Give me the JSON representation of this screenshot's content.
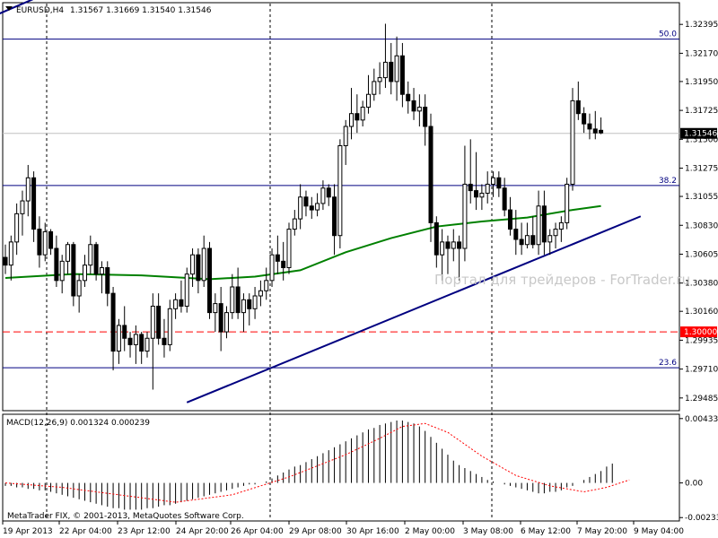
{
  "header": {
    "symbol": "EURUSD,H4",
    "ohlc": "1.31567 1.31669 1.31540 1.31546"
  },
  "watermark": "Портал для трейдеров - ForTrader.ru",
  "copyright": "MetaTrader FIX, © 2001-2013, MetaQuotes Software Corp.",
  "colors": {
    "candle": "#000000",
    "ma": "#008000",
    "trendline": "#000080",
    "fib": "#000080",
    "level": "#ff0000",
    "macd_signal": "#ff0000"
  },
  "price_axis": {
    "ticks": [
      "1.32395",
      "1.32170",
      "1.31950",
      "1.31725",
      "1.31500",
      "1.31275",
      "1.31055",
      "1.30830",
      "1.30605",
      "1.30380",
      "1.30160",
      "1.29935",
      "1.29710",
      "1.29485"
    ],
    "current_price": "1.31546",
    "level_price": "1.30000"
  },
  "fib_levels": [
    {
      "label": "50.0",
      "price": 1.3228
    },
    {
      "label": "38.2",
      "price": 1.3114
    },
    {
      "label": "23.6",
      "price": 1.2972
    }
  ],
  "macd": {
    "title": "MACD(12,26,9) 0.001324 0.000239",
    "ticks": [
      "0.004331",
      "0.00",
      "-0.002333"
    ]
  },
  "time_axis": [
    "19 Apr 2013",
    "22 Apr 04:00",
    "23 Apr 12:00",
    "24 Apr 20:00",
    "26 Apr 04:00",
    "29 Apr 08:00",
    "30 Apr 16:00",
    "2 May 00:00",
    "3 May 08:00",
    "6 May 12:00",
    "7 May 20:00",
    "9 May 04:00"
  ],
  "chart_data": {
    "type": "candlestick",
    "symbol": "EURUSD",
    "timeframe": "H4",
    "ylim": [
      1.294,
      1.3255
    ],
    "candles": [
      [
        1.3058,
        1.3068,
        1.3045,
        1.3052
      ],
      [
        1.3052,
        1.3075,
        1.304,
        1.307
      ],
      [
        1.307,
        1.31,
        1.306,
        1.3092
      ],
      [
        1.3092,
        1.311,
        1.3075,
        1.3102
      ],
      [
        1.3102,
        1.313,
        1.309,
        1.312
      ],
      [
        1.312,
        1.3125,
        1.307,
        1.308
      ],
      [
        1.308,
        1.309,
        1.305,
        1.306
      ],
      [
        1.306,
        1.3085,
        1.3055,
        1.3078
      ],
      [
        1.3078,
        1.308,
        1.306,
        1.3065
      ],
      [
        1.3065,
        1.3075,
        1.3035,
        1.304
      ],
      [
        1.304,
        1.306,
        1.303,
        1.3055
      ],
      [
        1.3055,
        1.307,
        1.3045,
        1.3068
      ],
      [
        1.3068,
        1.307,
        1.302,
        1.3028
      ],
      [
        1.3028,
        1.3045,
        1.3015,
        1.304
      ],
      [
        1.304,
        1.306,
        1.3035,
        1.3052
      ],
      [
        1.3052,
        1.3075,
        1.3045,
        1.3068
      ],
      [
        1.3068,
        1.307,
        1.304,
        1.3045
      ],
      [
        1.3045,
        1.3055,
        1.303,
        1.305
      ],
      [
        1.305,
        1.3055,
        1.302,
        1.303
      ],
      [
        1.303,
        1.3035,
        1.297,
        1.2985
      ],
      [
        1.2985,
        1.301,
        1.2975,
        1.3005
      ],
      [
        1.3005,
        1.302,
        1.2985,
        1.2995
      ],
      [
        1.2995,
        1.3,
        1.298,
        1.299
      ],
      [
        1.299,
        1.3005,
        1.2975,
        1.2998
      ],
      [
        1.2998,
        1.3,
        1.2975,
        1.2985
      ],
      [
        1.2985,
        1.3,
        1.298,
        1.2995
      ],
      [
        1.2995,
        1.303,
        1.2955,
        1.302
      ],
      [
        1.302,
        1.303,
        1.299,
        1.2995
      ],
      [
        1.2995,
        1.301,
        1.298,
        1.299
      ],
      [
        1.299,
        1.3025,
        1.2985,
        1.3018
      ],
      [
        1.3018,
        1.303,
        1.301,
        1.3025
      ],
      [
        1.3025,
        1.304,
        1.3015,
        1.302
      ],
      [
        1.302,
        1.305,
        1.3015,
        1.3045
      ],
      [
        1.3045,
        1.3065,
        1.3035,
        1.306
      ],
      [
        1.306,
        1.3065,
        1.303,
        1.304
      ],
      [
        1.304,
        1.3075,
        1.3035,
        1.3065
      ],
      [
        1.3065,
        1.307,
        1.301,
        1.3015
      ],
      [
        1.3015,
        1.303,
        1.3,
        1.3022
      ],
      [
        1.3022,
        1.3035,
        1.2985,
        1.3
      ],
      [
        1.3,
        1.302,
        1.2995,
        1.3015
      ],
      [
        1.3015,
        1.3045,
        1.301,
        1.3035
      ],
      [
        1.3035,
        1.305,
        1.301,
        1.3015
      ],
      [
        1.3015,
        1.303,
        1.3,
        1.3025
      ],
      [
        1.3025,
        1.303,
        1.3005,
        1.3018
      ],
      [
        1.3018,
        1.3035,
        1.301,
        1.3028
      ],
      [
        1.3028,
        1.304,
        1.302,
        1.3032
      ],
      [
        1.3032,
        1.305,
        1.3025,
        1.304
      ],
      [
        1.304,
        1.3065,
        1.3035,
        1.306
      ],
      [
        1.306,
        1.3075,
        1.3045,
        1.3055
      ],
      [
        1.3055,
        1.307,
        1.304,
        1.305
      ],
      [
        1.305,
        1.3085,
        1.3045,
        1.308
      ],
      [
        1.308,
        1.3095,
        1.3075,
        1.3088
      ],
      [
        1.3088,
        1.3115,
        1.308,
        1.3105
      ],
      [
        1.3105,
        1.311,
        1.309,
        1.3098
      ],
      [
        1.3098,
        1.3105,
        1.3088,
        1.3095
      ],
      [
        1.3095,
        1.3108,
        1.309,
        1.31
      ],
      [
        1.31,
        1.3118,
        1.3095,
        1.3112
      ],
      [
        1.3112,
        1.3115,
        1.3098,
        1.3105
      ],
      [
        1.3105,
        1.3115,
        1.306,
        1.3075
      ],
      [
        1.3075,
        1.315,
        1.3065,
        1.3145
      ],
      [
        1.3145,
        1.3165,
        1.313,
        1.316
      ],
      [
        1.316,
        1.319,
        1.315,
        1.317
      ],
      [
        1.317,
        1.3185,
        1.3155,
        1.3165
      ],
      [
        1.3165,
        1.318,
        1.316,
        1.3175
      ],
      [
        1.3175,
        1.32,
        1.317,
        1.3185
      ],
      [
        1.3185,
        1.3205,
        1.318,
        1.3195
      ],
      [
        1.3195,
        1.321,
        1.3185,
        1.3198
      ],
      [
        1.3198,
        1.324,
        1.319,
        1.321
      ],
      [
        1.321,
        1.3225,
        1.3185,
        1.3195
      ],
      [
        1.3195,
        1.323,
        1.318,
        1.3215
      ],
      [
        1.3215,
        1.3225,
        1.3175,
        1.3185
      ],
      [
        1.3185,
        1.3195,
        1.317,
        1.318
      ],
      [
        1.318,
        1.319,
        1.3165,
        1.3172
      ],
      [
        1.3172,
        1.3185,
        1.316,
        1.3175
      ],
      [
        1.3175,
        1.3185,
        1.3145,
        1.316
      ],
      [
        1.316,
        1.317,
        1.307,
        1.3085
      ],
      [
        1.3085,
        1.309,
        1.305,
        1.306
      ],
      [
        1.306,
        1.308,
        1.304,
        1.307
      ],
      [
        1.307,
        1.3075,
        1.3045,
        1.3065
      ],
      [
        1.3065,
        1.308,
        1.3055,
        1.307
      ],
      [
        1.307,
        1.3075,
        1.304,
        1.3065
      ],
      [
        1.3065,
        1.3145,
        1.3055,
        1.3115
      ],
      [
        1.3115,
        1.315,
        1.31,
        1.311
      ],
      [
        1.311,
        1.314,
        1.3095,
        1.3105
      ],
      [
        1.3105,
        1.3115,
        1.3095,
        1.3108
      ],
      [
        1.3108,
        1.3125,
        1.31,
        1.3115
      ],
      [
        1.3115,
        1.3125,
        1.3105,
        1.312
      ],
      [
        1.312,
        1.3125,
        1.3105,
        1.3112
      ],
      [
        1.3112,
        1.312,
        1.309,
        1.3095
      ],
      [
        1.3095,
        1.3105,
        1.3075,
        1.308
      ],
      [
        1.308,
        1.3095,
        1.306,
        1.3072
      ],
      [
        1.3072,
        1.3085,
        1.306,
        1.3068
      ],
      [
        1.3068,
        1.3085,
        1.3065,
        1.3075
      ],
      [
        1.3075,
        1.309,
        1.3065,
        1.3068
      ],
      [
        1.3068,
        1.311,
        1.306,
        1.3098
      ],
      [
        1.3098,
        1.311,
        1.306,
        1.307
      ],
      [
        1.307,
        1.308,
        1.306,
        1.3075
      ],
      [
        1.3075,
        1.3085,
        1.3065,
        1.308
      ],
      [
        1.308,
        1.309,
        1.307,
        1.3085
      ],
      [
        1.3085,
        1.312,
        1.308,
        1.3115
      ],
      [
        1.3115,
        1.319,
        1.311,
        1.318
      ],
      [
        1.318,
        1.3195,
        1.3165,
        1.317
      ],
      [
        1.317,
        1.3175,
        1.3155,
        1.3162
      ],
      [
        1.3162,
        1.317,
        1.315,
        1.3158
      ],
      [
        1.3158,
        1.3172,
        1.315,
        1.3155
      ],
      [
        1.3157,
        1.3167,
        1.3154,
        1.3155
      ]
    ],
    "moving_average": [
      [
        0,
        1.3042
      ],
      [
        12,
        1.3045
      ],
      [
        24,
        1.3044
      ],
      [
        36,
        1.3041
      ],
      [
        44,
        1.3043
      ],
      [
        52,
        1.3048
      ],
      [
        60,
        1.3062
      ],
      [
        68,
        1.3073
      ],
      [
        76,
        1.3082
      ],
      [
        84,
        1.3086
      ],
      [
        92,
        1.3089
      ],
      [
        100,
        1.3095
      ],
      [
        105,
        1.3098
      ]
    ],
    "trendlines": [
      {
        "from": [
          -1,
          1.3248
        ],
        "to": [
          8,
          1.3265
        ]
      },
      {
        "from": [
          32,
          1.2945
        ],
        "to": [
          112,
          1.309
        ]
      }
    ],
    "horizontal_level": 1.3,
    "macd": {
      "ylim": [
        -0.0025,
        0.0045
      ],
      "histogram": [
        -0.0002,
        -0.0002,
        -0.0003,
        -0.0003,
        -0.0004,
        -0.0004,
        -0.0005,
        -0.0005,
        -0.0006,
        -0.0007,
        -0.0008,
        -0.0009,
        -0.001,
        -0.0011,
        -0.0012,
        -0.0013,
        -0.0014,
        -0.0015,
        -0.0016,
        -0.0017,
        -0.0017,
        -0.0018,
        -0.0018,
        -0.0018,
        -0.0018,
        -0.0017,
        -0.0017,
        -0.0016,
        -0.0015,
        -0.0015,
        -0.0014,
        -0.0013,
        -0.0012,
        -0.0011,
        -0.001,
        -0.0009,
        -0.0008,
        -0.0007,
        -0.0006,
        -0.0005,
        -0.0004,
        -0.0003,
        -0.0002,
        -0.0001,
        -0.0001,
        0.0,
        0.0001,
        0.0003,
        0.0005,
        0.0007,
        0.0009,
        0.0011,
        0.0012,
        0.0014,
        0.0016,
        0.0018,
        0.002,
        0.0022,
        0.0024,
        0.0026,
        0.0028,
        0.003,
        0.0032,
        0.0034,
        0.0036,
        0.0037,
        0.0039,
        0.004,
        0.0041,
        0.0042,
        0.0042,
        0.0041,
        0.004,
        0.0038,
        0.0035,
        0.0031,
        0.0027,
        0.0023,
        0.0019,
        0.0015,
        0.0012,
        0.001,
        0.0008,
        0.0006,
        0.0004,
        0.0002,
        0.0001,
        0.0,
        -0.0001,
        -0.0002,
        -0.0003,
        -0.0004,
        -0.0005,
        -0.0006,
        -0.0007,
        -0.0007,
        -0.0006,
        -0.0006,
        -0.0005,
        -0.0003,
        -0.0002,
        0.0,
        0.0002,
        0.0004,
        0.0006,
        0.0008,
        0.0011,
        0.0013
      ],
      "signal": [
        [
          0,
          0.0
        ],
        [
          10,
          -0.0003
        ],
        [
          20,
          -0.0008
        ],
        [
          30,
          -0.0013
        ],
        [
          40,
          -0.0008
        ],
        [
          50,
          0.0004
        ],
        [
          60,
          0.0019
        ],
        [
          66,
          0.003
        ],
        [
          70,
          0.0038
        ],
        [
          74,
          0.004
        ],
        [
          78,
          0.0034
        ],
        [
          84,
          0.0018
        ],
        [
          90,
          0.0005
        ],
        [
          96,
          -0.0002
        ],
        [
          102,
          -0.0006
        ],
        [
          106,
          -0.0003
        ],
        [
          110,
          0.0002
        ]
      ]
    }
  }
}
